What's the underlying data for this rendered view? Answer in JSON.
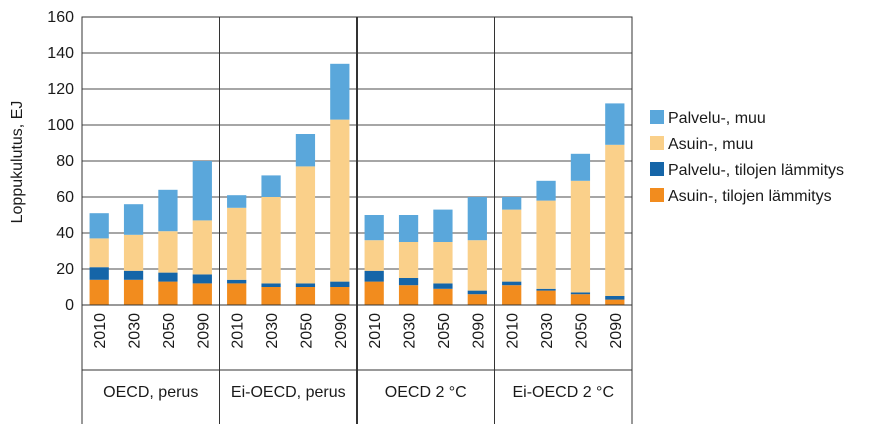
{
  "chart_data": {
    "type": "bar",
    "stacked": true,
    "ylabel": "Loppukulutus, EJ",
    "ylim": [
      0,
      160
    ],
    "yticks": [
      0,
      20,
      40,
      60,
      80,
      100,
      120,
      140,
      160
    ],
    "groups": [
      {
        "label": "OECD, perus",
        "years": [
          "2010",
          "2030",
          "2050",
          "2090"
        ]
      },
      {
        "label": "Ei-OECD, perus",
        "years": [
          "2010",
          "2030",
          "2050",
          "2090"
        ]
      },
      {
        "label": "OECD 2 °C",
        "years": [
          "2010",
          "2030",
          "2050",
          "2090"
        ]
      },
      {
        "label": "Ei-OECD 2 °C",
        "years": [
          "2010",
          "2030",
          "2050",
          "2090"
        ]
      }
    ],
    "series": [
      {
        "name": "Asuin-, tilojen lämmitys",
        "color": "#F28C1E",
        "values": [
          14,
          14,
          13,
          12,
          12,
          10,
          10,
          10,
          13,
          11,
          9,
          6,
          11,
          8,
          6,
          3
        ]
      },
      {
        "name": "Palvelu-, tilojen lämmitys",
        "color": "#1565A8",
        "values": [
          7,
          5,
          5,
          5,
          2,
          2,
          2,
          3,
          6,
          4,
          3,
          2,
          2,
          1,
          1,
          2
        ]
      },
      {
        "name": "Asuin-, muu",
        "color": "#FAD08A",
        "values": [
          16,
          20,
          23,
          30,
          40,
          48,
          65,
          90,
          17,
          20,
          23,
          28,
          40,
          49,
          62,
          84
        ]
      },
      {
        "name": "Palvelu-, muu",
        "color": "#5AA7DB",
        "values": [
          14,
          17,
          23,
          33,
          7,
          12,
          18,
          31,
          14,
          15,
          18,
          24,
          7,
          11,
          15,
          23
        ]
      }
    ],
    "legend_position": "right",
    "grid": true
  }
}
